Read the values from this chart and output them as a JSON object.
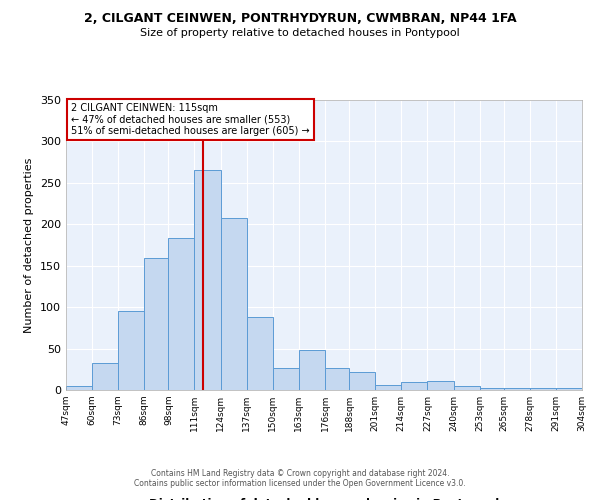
{
  "title1": "2, CILGANT CEINWEN, PONTRHYDYRUN, CWMBRAN, NP44 1FA",
  "title2": "Size of property relative to detached houses in Pontypool",
  "xlabel": "Distribution of detached houses by size in Pontypool",
  "ylabel": "Number of detached properties",
  "bin_labels": [
    "47sqm",
    "60sqm",
    "73sqm",
    "86sqm",
    "98sqm",
    "111sqm",
    "124sqm",
    "137sqm",
    "150sqm",
    "163sqm",
    "176sqm",
    "188sqm",
    "201sqm",
    "214sqm",
    "227sqm",
    "240sqm",
    "253sqm",
    "265sqm",
    "278sqm",
    "291sqm",
    "304sqm"
  ],
  "bar_heights": [
    5,
    33,
    95,
    159,
    183,
    265,
    208,
    88,
    27,
    48,
    27,
    22,
    6,
    10,
    11,
    5,
    3,
    2,
    2,
    3
  ],
  "bar_color": "#c5d8f0",
  "bar_edge_color": "#5b9bd5",
  "vline_x": 115,
  "vline_color": "#cc0000",
  "annotation_title": "2 CILGANT CEINWEN: 115sqm",
  "annotation_line1": "← 47% of detached houses are smaller (553)",
  "annotation_line2": "51% of semi-detached houses are larger (605) →",
  "annotation_box_color": "#ffffff",
  "annotation_box_edge": "#cc0000",
  "ylim": [
    0,
    350
  ],
  "yticks": [
    0,
    50,
    100,
    150,
    200,
    250,
    300,
    350
  ],
  "background_color": "#eaf1fb",
  "footer1": "Contains HM Land Registry data © Crown copyright and database right 2024.",
  "footer2": "Contains public sector information licensed under the Open Government Licence v3.0.",
  "bin_edges": [
    47,
    60,
    73,
    86,
    98,
    111,
    124,
    137,
    150,
    163,
    176,
    188,
    201,
    214,
    227,
    240,
    253,
    265,
    278,
    291,
    304
  ]
}
